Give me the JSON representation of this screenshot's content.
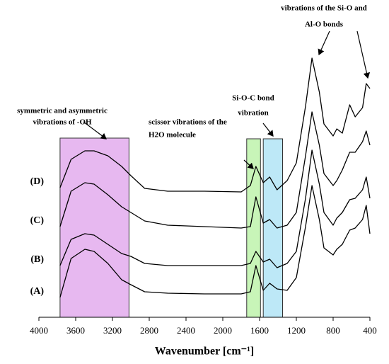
{
  "chart_data": {
    "type": "line",
    "xlabel": "Wavenumber [cm⁻¹]",
    "xlim": [
      4000,
      400
    ],
    "xticks": [
      4000,
      3600,
      3200,
      2800,
      2400,
      2000,
      1600,
      1200,
      800,
      400
    ],
    "ylim": [
      0,
      380
    ],
    "x": [
      3770,
      3650,
      3500,
      3400,
      3250,
      3100,
      3000,
      2850,
      2600,
      2200,
      1800,
      1700,
      1640,
      1560,
      1490,
      1410,
      1300,
      1200,
      1100,
      1030,
      950,
      900,
      800,
      760,
      700,
      620,
      560,
      480,
      440,
      400
    ],
    "series": [
      {
        "name": "(D)",
        "color": "#000000",
        "values": [
          183,
          223,
          235,
          235,
          228,
          213,
          200,
          182,
          178,
          178,
          177,
          186,
          213,
          190,
          198,
          180,
          193,
          218,
          298,
          366,
          318,
          273,
          256,
          266,
          260,
          300,
          283,
          296,
          330,
          323
        ]
      },
      {
        "name": "(C)",
        "color": "#000000",
        "values": [
          128,
          178,
          190,
          188,
          173,
          156,
          148,
          136,
          130,
          128,
          126,
          128,
          170,
          133,
          138,
          126,
          130,
          148,
          228,
          290,
          243,
          203,
          186,
          193,
          208,
          233,
          233,
          248,
          263,
          243
        ]
      },
      {
        "name": "(B)",
        "color": "#000000",
        "values": [
          73,
          110,
          118,
          116,
          103,
          90,
          86,
          76,
          73,
          73,
          73,
          76,
          93,
          78,
          82,
          70,
          76,
          93,
          168,
          236,
          188,
          148,
          130,
          140,
          148,
          166,
          168,
          180,
          198,
          168
        ]
      },
      {
        "name": "(A)",
        "color": "#000000",
        "values": [
          28,
          83,
          96,
          93,
          76,
          53,
          46,
          36,
          34,
          33,
          33,
          36,
          73,
          38,
          48,
          40,
          38,
          56,
          128,
          186,
          138,
          98,
          88,
          96,
          103,
          123,
          126,
          138,
          158,
          118
        ]
      }
    ],
    "bands": [
      {
        "from": 3770,
        "to": 3020,
        "color": "#e7b8f0"
      },
      {
        "from": 1740,
        "to": 1590,
        "color": "#c8f5b8"
      },
      {
        "from": 1560,
        "to": 1350,
        "color": "#bde8f7"
      }
    ],
    "annotations": [
      {
        "lines": [
          "symmetric and asymmetric",
          "vibrations of -OH"
        ]
      },
      {
        "lines": [
          "scissor vibrations of the",
          "H2O molecule"
        ]
      },
      {
        "lines": [
          "Si-O-C bond",
          "vibration"
        ]
      },
      {
        "lines": [
          "vibrations of the Si-O and",
          "Al-O bonds"
        ]
      }
    ]
  }
}
